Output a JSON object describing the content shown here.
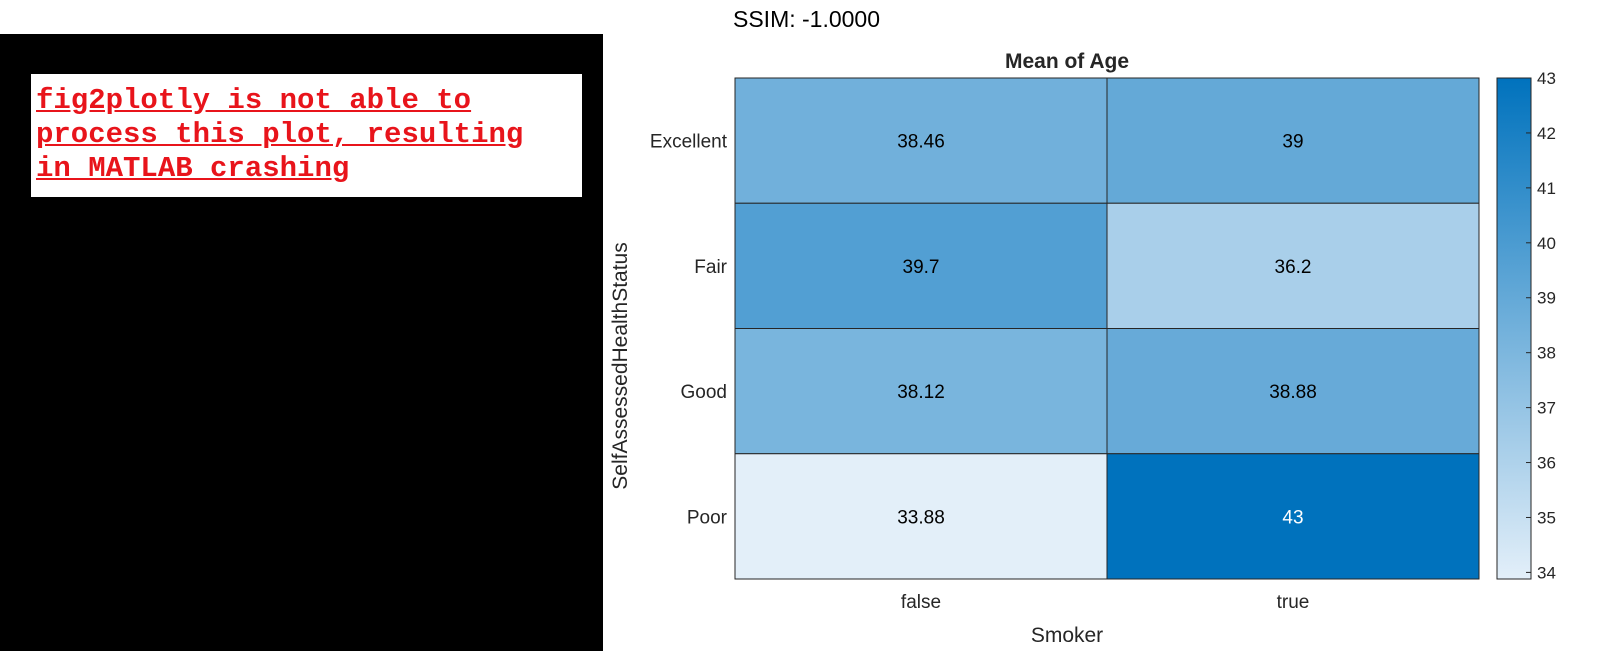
{
  "ssim_label": "SSIM: -1.0000",
  "error_message": "fig2plotly is not able to\nprocess this plot, resulting\nin MATLAB crashing",
  "colors": {
    "error_text": "#e8141b",
    "low": "#e3eff9",
    "high": "#0072bd"
  },
  "chart_data": {
    "type": "heatmap",
    "title": "Mean of Age",
    "xlabel": "Smoker",
    "ylabel": "SelfAssessedHealthStatus",
    "x_categories": [
      "false",
      "true"
    ],
    "y_categories": [
      "Excellent",
      "Fair",
      "Good",
      "Poor"
    ],
    "values": [
      [
        38.46,
        39
      ],
      [
        39.7,
        36.2
      ],
      [
        38.12,
        38.88
      ],
      [
        33.88,
        43
      ]
    ],
    "labels": [
      [
        "38.46",
        "39"
      ],
      [
        "39.7",
        "36.2"
      ],
      [
        "38.12",
        "38.88"
      ],
      [
        "33.88",
        "43"
      ]
    ],
    "colorbar": {
      "min": 33.88,
      "max": 43,
      "ticks": [
        34,
        35,
        36,
        37,
        38,
        39,
        40,
        41,
        42,
        43
      ]
    }
  }
}
